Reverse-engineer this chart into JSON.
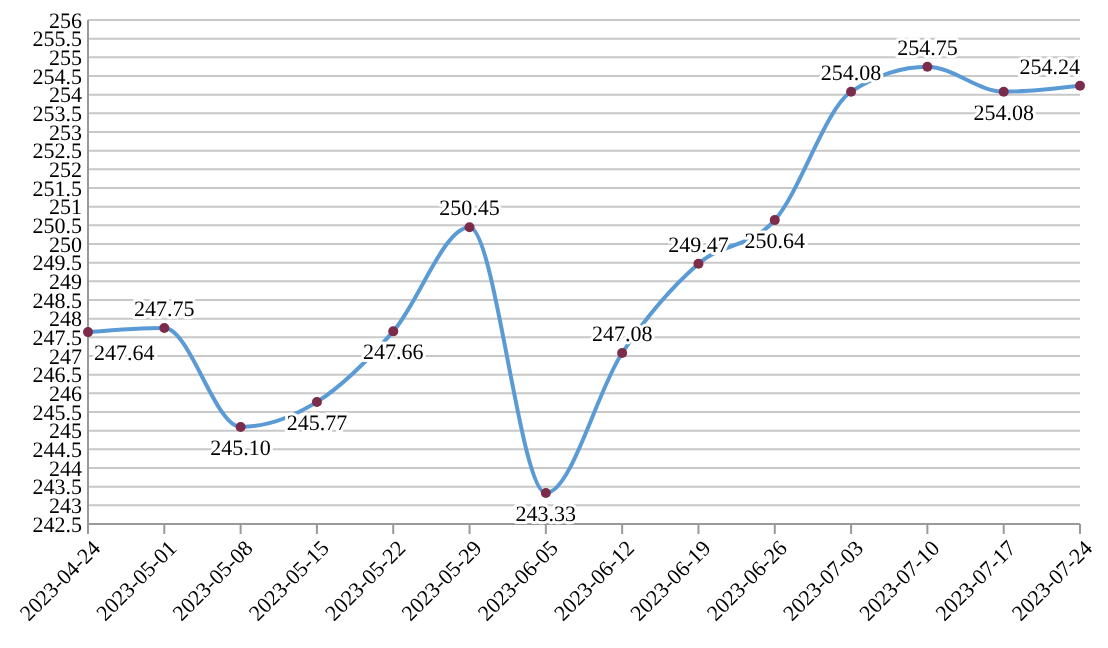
{
  "chart_data": {
    "type": "line",
    "categories": [
      "2023-04-24",
      "2023-05-01",
      "2023-05-08",
      "2023-05-15",
      "2023-05-22",
      "2023-05-29",
      "2023-06-05",
      "2023-06-12",
      "2023-06-19",
      "2023-06-26",
      "2023-07-03",
      "2023-07-10",
      "2023-07-17",
      "2023-07-24"
    ],
    "series": [
      {
        "color": "#5b9bd5",
        "values": [
          247.64,
          247.75,
          245.1,
          245.77,
          247.66,
          250.45,
          243.33,
          247.08,
          249.47,
          250.64,
          254.08,
          254.75,
          254.08,
          254.24
        ],
        "value_labels": [
          "247.64",
          "247.75",
          "245.10",
          "245.77",
          "247.66",
          "250.45",
          "243.33",
          "247.08",
          "249.47",
          "250.64",
          "254.08",
          "254.75",
          "254.08",
          "254.24"
        ]
      }
    ],
    "ylim": [
      242.5,
      256
    ],
    "yticks": [
      242.5,
      243,
      243.5,
      244,
      244.5,
      245,
      245.5,
      246,
      246.5,
      247,
      247.5,
      248,
      248.5,
      249,
      249.5,
      250,
      250.5,
      251,
      251.5,
      252,
      252.5,
      253,
      253.5,
      254,
      254.5,
      255,
      255.5,
      256
    ],
    "grid": "y",
    "marker": "circle",
    "line_style": "solid"
  }
}
